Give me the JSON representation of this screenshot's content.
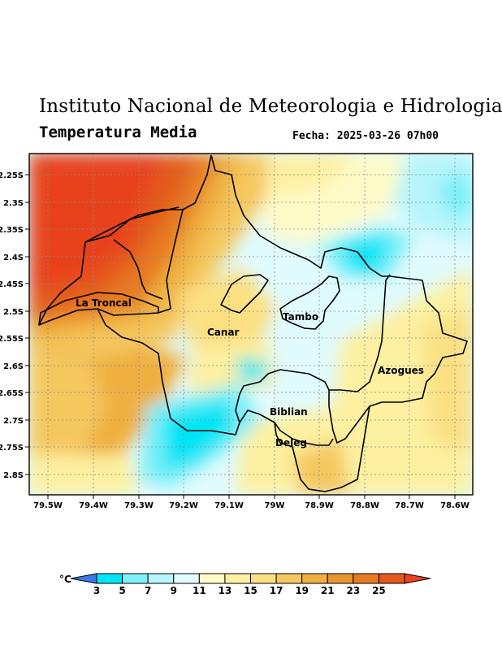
{
  "header": {
    "title": "Instituto Nacional de Meteorologia e Hidrologia",
    "subtitle": "Temperatura Media",
    "date_label": "Fecha: 2025-03-26 07h00"
  },
  "map": {
    "lon_labels": [
      "79.5W",
      "79.4W",
      "79.3W",
      "79.2W",
      "79.1W",
      "79W",
      "78.9W",
      "78.8W",
      "78.7W",
      "78.6W"
    ],
    "lat_labels": [
      "2.25S",
      "2.3S",
      "2.35S",
      "2.4S",
      "2.45S",
      "2.5S",
      "2.55S",
      "2.6S",
      "2.65S",
      "2.7S",
      "2.75S",
      "2.8S"
    ],
    "places": [
      {
        "name": "La Troncal"
      },
      {
        "name": "Tambo"
      },
      {
        "name": "Canar"
      },
      {
        "name": "Azogues"
      },
      {
        "name": "Biblian"
      },
      {
        "name": "Deleg"
      }
    ]
  },
  "legend": {
    "unit": "°C",
    "ticks": [
      "3",
      "5",
      "7",
      "9",
      "11",
      "13",
      "15",
      "17",
      "19",
      "21",
      "23",
      "25"
    ],
    "colors": [
      "#3a78e6",
      "#00e5f5",
      "#7ef0f8",
      "#b6f5fb",
      "#e0fbfd",
      "#fffbc8",
      "#fdf0a0",
      "#fbe083",
      "#f5c85e",
      "#efb03f",
      "#e99530",
      "#e77a23",
      "#e45a1e",
      "#e8431e"
    ]
  }
}
